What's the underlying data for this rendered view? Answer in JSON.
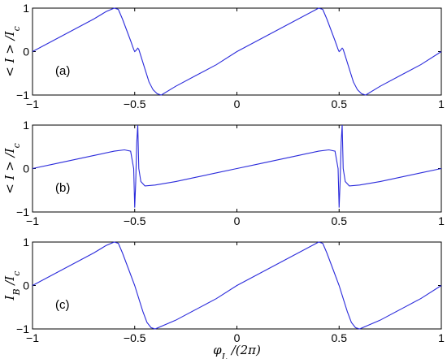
{
  "chart_data": [
    {
      "type": "line",
      "panel_label": "(a)",
      "ylabel": "< I > /I_c",
      "xlim": [
        -1,
        1
      ],
      "ylim": [
        -1,
        1
      ],
      "xticks": [
        "-1",
        "-0.5",
        "0",
        "0.5",
        "1"
      ],
      "yticks": [
        "1",
        "0",
        "-1"
      ],
      "grid": false,
      "color": "#2b2bdb",
      "series": [
        {
          "x": [
            -1.0,
            -0.9,
            -0.8,
            -0.7,
            -0.64,
            -0.6,
            -0.58,
            -0.56,
            -0.54,
            -0.52,
            -0.505,
            -0.5,
            -0.495,
            -0.485,
            -0.48,
            -0.47,
            -0.45,
            -0.43,
            -0.41,
            -0.39,
            -0.37,
            -0.3,
            -0.2,
            -0.1,
            0.0,
            0.1,
            0.2,
            0.3,
            0.36,
            0.4,
            0.42,
            0.44,
            0.46,
            0.48,
            0.495,
            0.5,
            0.505,
            0.515,
            0.52,
            0.53,
            0.55,
            0.57,
            0.59,
            0.61,
            0.63,
            0.7,
            0.8,
            0.9,
            1.0
          ],
          "y": [
            0.0,
            0.25,
            0.5,
            0.75,
            0.92,
            1.0,
            0.97,
            0.75,
            0.5,
            0.25,
            0.05,
            0.0,
            0.02,
            0.08,
            0.05,
            -0.1,
            -0.4,
            -0.7,
            -0.88,
            -0.97,
            -1.0,
            -0.8,
            -0.55,
            -0.3,
            0.0,
            0.25,
            0.5,
            0.75,
            0.9,
            1.0,
            0.97,
            0.75,
            0.5,
            0.25,
            0.05,
            0.0,
            0.02,
            0.08,
            0.05,
            -0.1,
            -0.4,
            -0.7,
            -0.88,
            -0.97,
            -1.0,
            -0.8,
            -0.55,
            -0.3,
            0.0
          ]
        }
      ]
    },
    {
      "type": "line",
      "panel_label": "(b)",
      "ylabel": "< I > /I_c",
      "xlim": [
        -1,
        1
      ],
      "ylim": [
        -1,
        1
      ],
      "xticks": [
        "-1",
        "-0.5",
        "0",
        "0.5",
        "1"
      ],
      "yticks": [
        "1",
        "0",
        "-1"
      ],
      "grid": false,
      "color": "#2b2bdb",
      "series": [
        {
          "x": [
            -1.0,
            -0.9,
            -0.8,
            -0.7,
            -0.6,
            -0.55,
            -0.52,
            -0.505,
            -0.5,
            -0.495,
            -0.49,
            -0.485,
            -0.48,
            -0.47,
            -0.45,
            -0.4,
            -0.3,
            -0.2,
            -0.1,
            0.0,
            0.1,
            0.2,
            0.3,
            0.4,
            0.45,
            0.48,
            0.495,
            0.5,
            0.505,
            0.51,
            0.515,
            0.52,
            0.53,
            0.55,
            0.6,
            0.7,
            0.8,
            0.9,
            1.0
          ],
          "y": [
            0.0,
            0.1,
            0.2,
            0.3,
            0.4,
            0.43,
            0.4,
            0.0,
            -0.9,
            -0.3,
            0.6,
            1.0,
            0.0,
            -0.3,
            -0.4,
            -0.38,
            -0.3,
            -0.2,
            -0.1,
            0.0,
            0.1,
            0.2,
            0.3,
            0.4,
            0.43,
            0.4,
            0.0,
            -0.9,
            -0.3,
            0.6,
            1.0,
            0.0,
            -0.3,
            -0.4,
            -0.38,
            -0.3,
            -0.2,
            -0.1,
            0.0
          ]
        }
      ]
    },
    {
      "type": "line",
      "panel_label": "(c)",
      "ylabel": "I_B /I_c",
      "xlabel": "φ_L /(2π)",
      "xlim": [
        -1,
        1
      ],
      "ylim": [
        -1,
        1
      ],
      "xticks": [
        "-1",
        "-0.5",
        "0",
        "0.5",
        "1"
      ],
      "yticks": [
        "1",
        "0",
        "-1"
      ],
      "grid": false,
      "color": "#2b2bdb",
      "series": [
        {
          "x": [
            -1.0,
            -0.9,
            -0.8,
            -0.7,
            -0.64,
            -0.6,
            -0.58,
            -0.56,
            -0.54,
            -0.52,
            -0.5,
            -0.48,
            -0.46,
            -0.44,
            -0.42,
            -0.4,
            -0.3,
            -0.2,
            -0.1,
            0.0,
            0.1,
            0.2,
            0.3,
            0.36,
            0.4,
            0.42,
            0.44,
            0.46,
            0.48,
            0.5,
            0.52,
            0.54,
            0.56,
            0.58,
            0.6,
            0.7,
            0.8,
            0.9,
            1.0
          ],
          "y": [
            0.0,
            0.25,
            0.5,
            0.75,
            0.92,
            1.0,
            0.97,
            0.75,
            0.5,
            0.25,
            0.0,
            -0.3,
            -0.6,
            -0.85,
            -0.97,
            -1.0,
            -0.8,
            -0.55,
            -0.3,
            0.0,
            0.25,
            0.5,
            0.75,
            0.9,
            1.0,
            0.97,
            0.75,
            0.5,
            0.25,
            0.0,
            -0.3,
            -0.6,
            -0.85,
            -0.97,
            -1.0,
            -0.8,
            -0.55,
            -0.3,
            0.0
          ]
        }
      ]
    }
  ]
}
